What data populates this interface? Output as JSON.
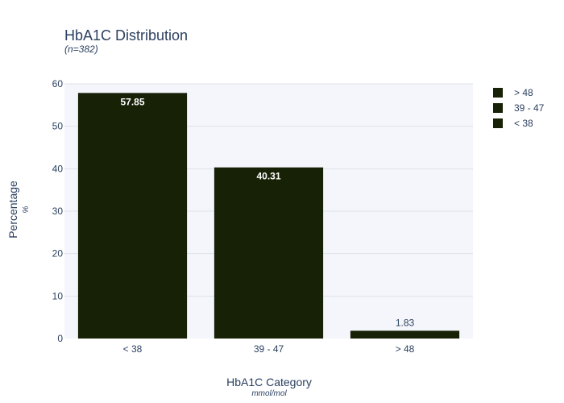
{
  "chart_data": {
    "type": "bar",
    "title": "HbA1C Distribution",
    "subtitle": "(n=382)",
    "xlabel": "HbA1C Category",
    "xlabel_sub": "mmol/mol",
    "ylabel": "Percentage",
    "ylabel_sub": "%",
    "categories": [
      "< 38",
      "39 - 47",
      "> 48"
    ],
    "values": [
      57.85,
      40.31,
      1.83
    ],
    "value_labels": [
      "57.85",
      "40.31",
      "1.83"
    ],
    "ylim": [
      0,
      60
    ],
    "yticks": [
      0,
      10,
      20,
      30,
      40,
      50,
      60
    ],
    "grid": true,
    "legend_position": "top-right",
    "legend": [
      "> 48",
      "39 - 47",
      "< 38"
    ],
    "bar_color": "#172106",
    "plot_bg": "#f5f6fb",
    "grid_color": "#dde1ea"
  }
}
